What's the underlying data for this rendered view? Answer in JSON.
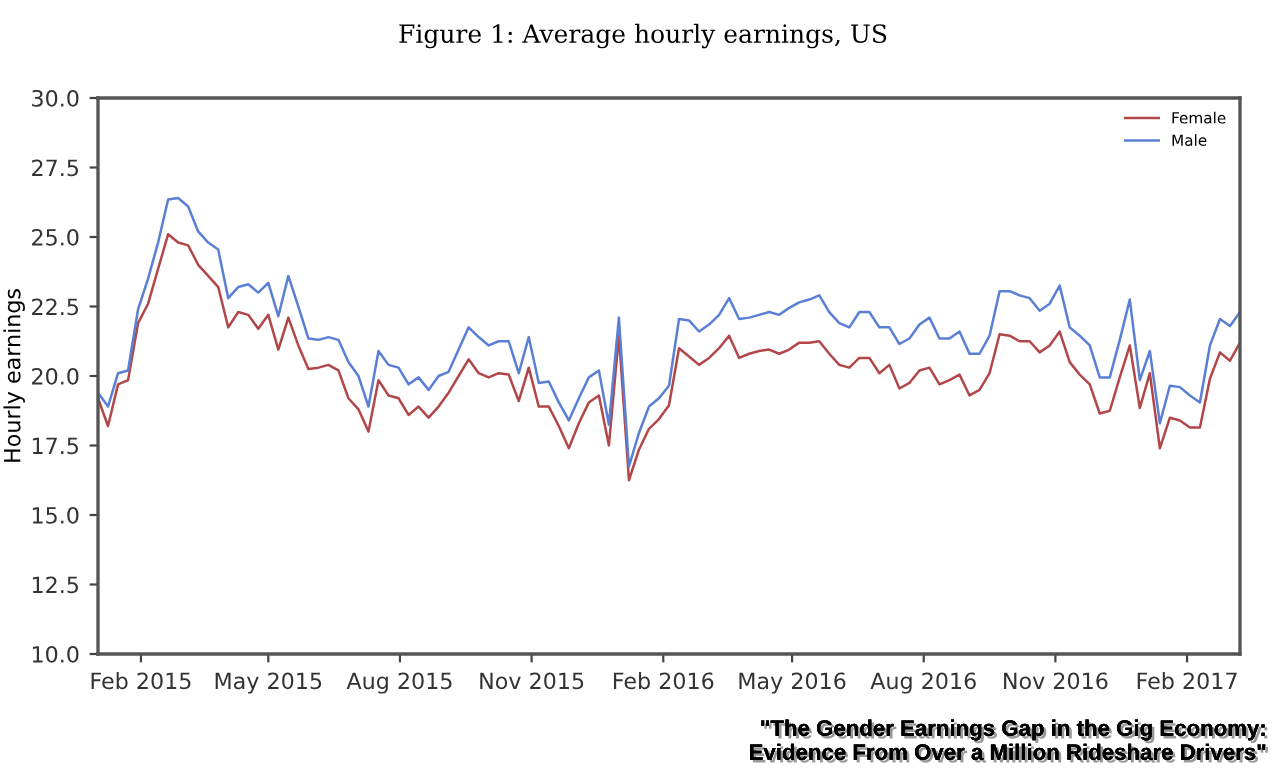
{
  "chart_data": {
    "type": "line",
    "title": "Figure 1: Average hourly earnings, US",
    "ylabel": "Hourly earnings",
    "annotations": [
      "\"The Gender Earnings Gap in the Gig Economy:\nEvidence From Over a Million Rideshare Drivers\""
    ],
    "x": [
      "2015-01-02",
      "2015-01-09",
      "2015-01-16",
      "2015-01-23",
      "2015-01-30",
      "2015-02-06",
      "2015-02-13",
      "2015-02-20",
      "2015-02-27",
      "2015-03-06",
      "2015-03-13",
      "2015-03-20",
      "2015-03-27",
      "2015-04-03",
      "2015-04-10",
      "2015-04-17",
      "2015-04-24",
      "2015-05-01",
      "2015-05-08",
      "2015-05-15",
      "2015-05-22",
      "2015-05-29",
      "2015-06-05",
      "2015-06-12",
      "2015-06-19",
      "2015-06-26",
      "2015-07-03",
      "2015-07-10",
      "2015-07-17",
      "2015-07-24",
      "2015-07-31",
      "2015-08-07",
      "2015-08-14",
      "2015-08-21",
      "2015-08-28",
      "2015-09-04",
      "2015-09-11",
      "2015-09-18",
      "2015-09-25",
      "2015-10-02",
      "2015-10-09",
      "2015-10-16",
      "2015-10-23",
      "2015-10-30",
      "2015-11-06",
      "2015-11-13",
      "2015-11-20",
      "2015-11-27",
      "2015-12-04",
      "2015-12-11",
      "2015-12-18",
      "2015-12-25",
      "2016-01-01",
      "2016-01-08",
      "2016-01-15",
      "2016-01-22",
      "2016-01-29",
      "2016-02-05",
      "2016-02-12",
      "2016-02-19",
      "2016-02-26",
      "2016-03-04",
      "2016-03-11",
      "2016-03-18",
      "2016-03-25",
      "2016-04-01",
      "2016-04-08",
      "2016-04-15",
      "2016-04-22",
      "2016-04-29",
      "2016-05-06",
      "2016-05-13",
      "2016-05-20",
      "2016-05-27",
      "2016-06-03",
      "2016-06-10",
      "2016-06-17",
      "2016-06-24",
      "2016-07-01",
      "2016-07-08",
      "2016-07-15",
      "2016-07-22",
      "2016-07-29",
      "2016-08-05",
      "2016-08-12",
      "2016-08-19",
      "2016-08-26",
      "2016-09-02",
      "2016-09-09",
      "2016-09-16",
      "2016-09-23",
      "2016-09-30",
      "2016-10-07",
      "2016-10-14",
      "2016-10-21",
      "2016-10-28",
      "2016-11-04",
      "2016-11-11",
      "2016-11-18",
      "2016-11-25",
      "2016-12-02",
      "2016-12-09",
      "2016-12-16",
      "2016-12-23",
      "2016-12-30",
      "2017-01-06",
      "2017-01-13",
      "2017-01-20",
      "2017-01-27",
      "2017-02-03",
      "2017-02-10",
      "2017-02-17",
      "2017-02-24",
      "2017-03-03",
      "2017-03-10"
    ],
    "series": [
      {
        "name": "Female",
        "color": "#b2474a",
        "values": [
          19.2,
          18.2,
          19.7,
          19.85,
          21.9,
          22.6,
          23.85,
          25.1,
          24.8,
          24.7,
          24.0,
          23.6,
          23.2,
          21.75,
          22.3,
          22.2,
          21.7,
          22.2,
          20.95,
          22.1,
          21.1,
          20.25,
          20.3,
          20.4,
          20.2,
          19.2,
          18.8,
          18.0,
          19.85,
          19.3,
          19.2,
          18.6,
          18.9,
          18.5,
          18.9,
          19.4,
          20.0,
          20.6,
          20.1,
          19.95,
          20.1,
          20.05,
          19.1,
          20.3,
          18.9,
          18.9,
          18.2,
          17.4,
          18.3,
          19.05,
          19.3,
          17.5,
          21.45,
          16.25,
          17.35,
          18.1,
          18.45,
          18.95,
          21.0,
          20.7,
          20.4,
          20.65,
          21.0,
          21.45,
          20.65,
          20.8,
          20.9,
          20.95,
          20.8,
          20.95,
          21.2,
          21.2,
          21.25,
          20.8,
          20.4,
          20.3,
          20.65,
          20.65,
          20.1,
          20.4,
          19.55,
          19.75,
          20.2,
          20.3,
          19.7,
          19.85,
          20.05,
          19.3,
          19.5,
          20.1,
          21.5,
          21.45,
          21.25,
          21.25,
          20.85,
          21.1,
          21.6,
          20.5,
          20.05,
          19.7,
          18.65,
          18.75,
          19.95,
          21.1,
          18.85,
          20.1,
          17.4,
          18.5,
          18.4,
          18.15,
          18.15,
          19.9,
          20.85,
          20.55,
          21.2
        ]
      },
      {
        "name": "Male",
        "color": "#5a7fd4",
        "values": [
          19.4,
          18.9,
          20.1,
          20.2,
          22.4,
          23.5,
          24.8,
          26.35,
          26.4,
          26.1,
          25.2,
          24.8,
          24.55,
          22.8,
          23.2,
          23.3,
          23.0,
          23.35,
          22.15,
          23.6,
          22.5,
          21.35,
          21.3,
          21.4,
          21.3,
          20.5,
          20.0,
          18.9,
          20.9,
          20.4,
          20.3,
          19.7,
          19.95,
          19.5,
          20.0,
          20.15,
          20.95,
          21.75,
          21.4,
          21.1,
          21.25,
          21.25,
          20.1,
          21.4,
          19.75,
          19.8,
          19.05,
          18.4,
          19.2,
          19.95,
          20.2,
          18.25,
          22.1,
          16.75,
          17.95,
          18.9,
          19.2,
          19.65,
          22.05,
          22.0,
          21.6,
          21.85,
          22.2,
          22.8,
          22.05,
          22.1,
          22.2,
          22.3,
          22.2,
          22.45,
          22.65,
          22.75,
          22.9,
          22.3,
          21.9,
          21.75,
          22.3,
          22.3,
          21.75,
          21.75,
          21.15,
          21.35,
          21.85,
          22.1,
          21.35,
          21.35,
          21.6,
          20.8,
          20.8,
          21.45,
          23.05,
          23.05,
          22.9,
          22.8,
          22.35,
          22.6,
          23.25,
          21.75,
          21.45,
          21.1,
          19.95,
          19.95,
          21.3,
          22.75,
          19.85,
          20.9,
          18.3,
          19.65,
          19.6,
          19.3,
          19.05,
          21.1,
          22.05,
          21.8,
          22.3
        ]
      }
    ],
    "xlim": [
      "2015-01-02",
      "2017-03-10"
    ],
    "xticks": [
      {
        "value": "2015-02-01",
        "label": "Feb 2015"
      },
      {
        "value": "2015-05-01",
        "label": "May 2015"
      },
      {
        "value": "2015-08-01",
        "label": "Aug 2015"
      },
      {
        "value": "2015-11-01",
        "label": "Nov 2015"
      },
      {
        "value": "2016-02-01",
        "label": "Feb 2016"
      },
      {
        "value": "2016-05-01",
        "label": "May 2016"
      },
      {
        "value": "2016-08-01",
        "label": "Aug 2016"
      },
      {
        "value": "2016-11-01",
        "label": "Nov 2016"
      },
      {
        "value": "2017-02-01",
        "label": "Feb 2017"
      }
    ],
    "ylim": [
      10.0,
      30.0
    ],
    "yticks": [
      {
        "value": 10.0,
        "label": "10.0"
      },
      {
        "value": 12.5,
        "label": "12.5"
      },
      {
        "value": 15.0,
        "label": "15.0"
      },
      {
        "value": 17.5,
        "label": "17.5"
      },
      {
        "value": 20.0,
        "label": "20.0"
      },
      {
        "value": 22.5,
        "label": "22.5"
      },
      {
        "value": 25.0,
        "label": "25.0"
      },
      {
        "value": 27.5,
        "label": "27.5"
      },
      {
        "value": 30.0,
        "label": "30.0"
      }
    ],
    "legend": "top right"
  }
}
